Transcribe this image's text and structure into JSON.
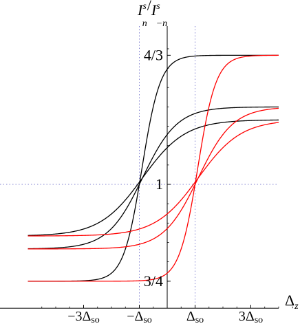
{
  "chart_data": {
    "type": "line",
    "title": "",
    "ylabel": {
      "main": "I",
      "sup": "s",
      "sub": "n",
      "sep": "/",
      "main2": "I",
      "sup2": "s",
      "sub2": "−n"
    },
    "xlabel": {
      "main": "Δ",
      "sub": "z"
    },
    "xlim": [
      -5,
      5
    ],
    "ylim": [
      0.68,
      1.43
    ],
    "x_ticks": [
      {
        "value": -3,
        "label": "−3Δ",
        "sub": "so"
      },
      {
        "value": -1,
        "label": "−Δ",
        "sub": "so"
      },
      {
        "value": 1,
        "label": "Δ",
        "sub": "so"
      },
      {
        "value": 3,
        "label": "3Δ",
        "sub": "so"
      }
    ],
    "y_ticks": [
      {
        "value": 1.3333,
        "label": "4/3"
      },
      {
        "value": 1.0,
        "label": "1"
      },
      {
        "value": 0.75,
        "label": "3/4"
      }
    ],
    "reference_lines": {
      "x": [
        -1,
        1
      ],
      "y": [
        1.0
      ]
    },
    "grid": false,
    "legend": "none",
    "series": [
      {
        "color": "#000000",
        "center": -1,
        "low": 0.75,
        "high": 1.3333,
        "steepness": 3.0
      },
      {
        "color": "#000000",
        "center": -1,
        "low": 0.8333,
        "high": 1.2,
        "steepness": 1.6
      },
      {
        "color": "#000000",
        "center": -1,
        "low": 0.8667,
        "high": 1.1667,
        "steepness": 1.3
      },
      {
        "color": "#ff0000",
        "center": 1,
        "low": 0.75,
        "high": 1.3333,
        "steepness": 3.0
      },
      {
        "color": "#ff0000",
        "center": 1,
        "low": 0.8333,
        "high": 1.2,
        "steepness": 1.6
      },
      {
        "color": "#ff0000",
        "center": 1,
        "low": 0.8667,
        "high": 1.1667,
        "steepness": 1.3
      }
    ]
  }
}
